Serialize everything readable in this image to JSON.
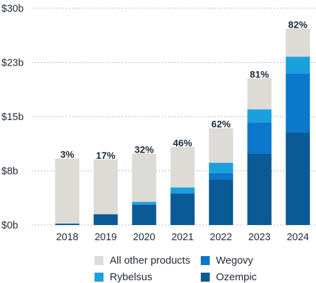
{
  "chart_data": {
    "type": "bar",
    "stacked": true,
    "categories": [
      "2018",
      "2019",
      "2020",
      "2021",
      "2022",
      "2023",
      "2024"
    ],
    "y_ticks": [
      "$0b",
      "$8b",
      "$15b",
      "$23b",
      "$30b"
    ],
    "ylim": [
      0,
      30
    ],
    "grid": "horizontal dotted",
    "legend_position": "bottom",
    "series": [
      {
        "name": "Ozempic",
        "color": "#0a5a96",
        "values": [
          0.2,
          1.5,
          2.8,
          4.3,
          6.3,
          9.9,
          12.8
        ]
      },
      {
        "name": "Wegovy",
        "color": "#0b78cc",
        "values": [
          0.0,
          0.0,
          0.1,
          0.1,
          0.9,
          4.3,
          8.2
        ]
      },
      {
        "name": "Rybelsus",
        "color": "#1aa0dc",
        "values": [
          0.0,
          0.0,
          0.3,
          0.8,
          1.4,
          1.8,
          2.3
        ]
      },
      {
        "name": "All other products",
        "color": "#dcdbd6",
        "values": [
          9.0,
          7.6,
          6.7,
          5.6,
          4.8,
          4.3,
          3.9
        ]
      }
    ],
    "annotations": [
      "3%",
      "17%",
      "32%",
      "46%",
      "62%",
      "81%",
      "82%"
    ]
  },
  "legend": {
    "items": [
      {
        "label": "All other products",
        "color": "#dcdbd6"
      },
      {
        "label": "Wegovy",
        "color": "#0b78cc"
      },
      {
        "label": "Rybelsus",
        "color": "#1aa0dc"
      },
      {
        "label": "Ozempic",
        "color": "#0a5a96"
      }
    ]
  }
}
